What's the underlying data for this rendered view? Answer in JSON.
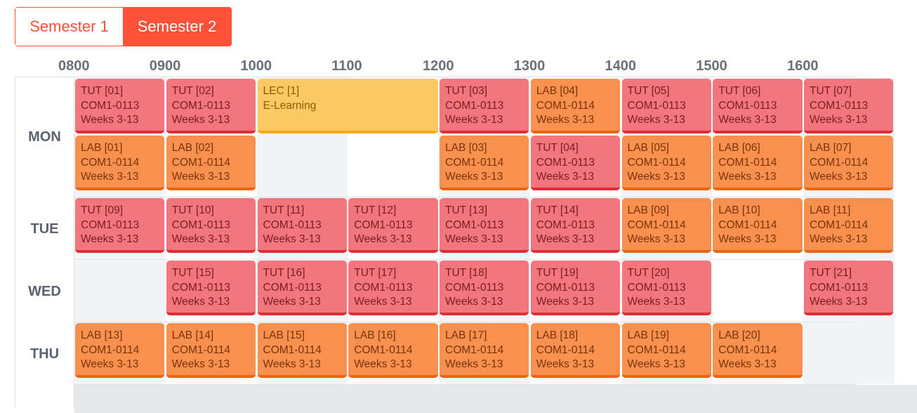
{
  "semesters": {
    "sem1": "Semester 1",
    "sem2": "Semester 2"
  },
  "hours": [
    "0800",
    "0900",
    "1000",
    "1100",
    "1200",
    "1300",
    "1400",
    "1500",
    "1600"
  ],
  "days": [
    "MON",
    "TUE",
    "WED",
    "THU"
  ],
  "colors": {
    "tutorial": "#f2777d",
    "lab": "#f8914f",
    "lecture": "#fdc965",
    "accent": "#ff5138"
  },
  "lessons": [
    {
      "day": "MON",
      "lane": 0,
      "start": "0800",
      "end": "0900",
      "title": "TUT [01]",
      "venue": "COM1-0113",
      "weeks": "Weeks 3-13",
      "kind": "red"
    },
    {
      "day": "MON",
      "lane": 0,
      "start": "0900",
      "end": "1000",
      "title": "TUT [02]",
      "venue": "COM1-0113",
      "weeks": "Weeks 3-13",
      "kind": "red"
    },
    {
      "day": "MON",
      "lane": 0,
      "start": "1000",
      "end": "1200",
      "title": "LEC [1]",
      "venue": "E-Learning",
      "weeks": "",
      "kind": "yellow"
    },
    {
      "day": "MON",
      "lane": 0,
      "start": "1200",
      "end": "1300",
      "title": "TUT [03]",
      "venue": "COM1-0113",
      "weeks": "Weeks 3-13",
      "kind": "red"
    },
    {
      "day": "MON",
      "lane": 0,
      "start": "1300",
      "end": "1400",
      "title": "LAB [04]",
      "venue": "COM1-0114",
      "weeks": "Weeks 3-13",
      "kind": "orange"
    },
    {
      "day": "MON",
      "lane": 0,
      "start": "1400",
      "end": "1500",
      "title": "TUT [05]",
      "venue": "COM1-0113",
      "weeks": "Weeks 3-13",
      "kind": "red"
    },
    {
      "day": "MON",
      "lane": 0,
      "start": "1500",
      "end": "1600",
      "title": "TUT [06]",
      "venue": "COM1-0113",
      "weeks": "Weeks 3-13",
      "kind": "red"
    },
    {
      "day": "MON",
      "lane": 0,
      "start": "1600",
      "end": "1700",
      "title": "TUT [07]",
      "venue": "COM1-0113",
      "weeks": "Weeks 3-13",
      "kind": "red"
    },
    {
      "day": "MON",
      "lane": 1,
      "start": "0800",
      "end": "0900",
      "title": "LAB [01]",
      "venue": "COM1-0114",
      "weeks": "Weeks 3-13",
      "kind": "orange"
    },
    {
      "day": "MON",
      "lane": 1,
      "start": "0900",
      "end": "1000",
      "title": "LAB [02]",
      "venue": "COM1-0114",
      "weeks": "Weeks 3-13",
      "kind": "orange"
    },
    {
      "day": "MON",
      "lane": 1,
      "start": "1200",
      "end": "1300",
      "title": "LAB [03]",
      "venue": "COM1-0114",
      "weeks": "Weeks 3-13",
      "kind": "orange"
    },
    {
      "day": "MON",
      "lane": 1,
      "start": "1300",
      "end": "1400",
      "title": "TUT [04]",
      "venue": "COM1-0113",
      "weeks": "Weeks 3-13",
      "kind": "red"
    },
    {
      "day": "MON",
      "lane": 1,
      "start": "1400",
      "end": "1500",
      "title": "LAB [05]",
      "venue": "COM1-0114",
      "weeks": "Weeks 3-13",
      "kind": "orange"
    },
    {
      "day": "MON",
      "lane": 1,
      "start": "1500",
      "end": "1600",
      "title": "LAB [06]",
      "venue": "COM1-0114",
      "weeks": "Weeks 3-13",
      "kind": "orange"
    },
    {
      "day": "MON",
      "lane": 1,
      "start": "1600",
      "end": "1700",
      "title": "LAB [07]",
      "venue": "COM1-0114",
      "weeks": "Weeks 3-13",
      "kind": "orange"
    },
    {
      "day": "TUE",
      "lane": 0,
      "start": "0800",
      "end": "0900",
      "title": "TUT [09]",
      "venue": "COM1-0113",
      "weeks": "Weeks 3-13",
      "kind": "red"
    },
    {
      "day": "TUE",
      "lane": 0,
      "start": "0900",
      "end": "1000",
      "title": "TUT [10]",
      "venue": "COM1-0113",
      "weeks": "Weeks 3-13",
      "kind": "red"
    },
    {
      "day": "TUE",
      "lane": 0,
      "start": "1000",
      "end": "1100",
      "title": "TUT [11]",
      "venue": "COM1-0113",
      "weeks": "Weeks 3-13",
      "kind": "red"
    },
    {
      "day": "TUE",
      "lane": 0,
      "start": "1100",
      "end": "1200",
      "title": "TUT [12]",
      "venue": "COM1-0113",
      "weeks": "Weeks 3-13",
      "kind": "red"
    },
    {
      "day": "TUE",
      "lane": 0,
      "start": "1200",
      "end": "1300",
      "title": "TUT [13]",
      "venue": "COM1-0113",
      "weeks": "Weeks 3-13",
      "kind": "red"
    },
    {
      "day": "TUE",
      "lane": 0,
      "start": "1300",
      "end": "1400",
      "title": "TUT [14]",
      "venue": "COM1-0113",
      "weeks": "Weeks 3-13",
      "kind": "red"
    },
    {
      "day": "TUE",
      "lane": 0,
      "start": "1400",
      "end": "1500",
      "title": "LAB [09]",
      "venue": "COM1-0114",
      "weeks": "Weeks 3-13",
      "kind": "orange"
    },
    {
      "day": "TUE",
      "lane": 0,
      "start": "1500",
      "end": "1600",
      "title": "LAB [10]",
      "venue": "COM1-0114",
      "weeks": "Weeks 3-13",
      "kind": "orange"
    },
    {
      "day": "TUE",
      "lane": 0,
      "start": "1600",
      "end": "1700",
      "title": "LAB [11]",
      "venue": "COM1-0114",
      "weeks": "Weeks 3-13",
      "kind": "orange"
    },
    {
      "day": "WED",
      "lane": 0,
      "start": "0900",
      "end": "1000",
      "title": "TUT [15]",
      "venue": "COM1-0113",
      "weeks": "Weeks 3-13",
      "kind": "red"
    },
    {
      "day": "WED",
      "lane": 0,
      "start": "1000",
      "end": "1100",
      "title": "TUT [16]",
      "venue": "COM1-0113",
      "weeks": "Weeks 3-13",
      "kind": "red"
    },
    {
      "day": "WED",
      "lane": 0,
      "start": "1100",
      "end": "1200",
      "title": "TUT [17]",
      "venue": "COM1-0113",
      "weeks": "Weeks 3-13",
      "kind": "red"
    },
    {
      "day": "WED",
      "lane": 0,
      "start": "1200",
      "end": "1300",
      "title": "TUT [18]",
      "venue": "COM1-0113",
      "weeks": "Weeks 3-13",
      "kind": "red"
    },
    {
      "day": "WED",
      "lane": 0,
      "start": "1300",
      "end": "1400",
      "title": "TUT [19]",
      "venue": "COM1-0113",
      "weeks": "Weeks 3-13",
      "kind": "red"
    },
    {
      "day": "WED",
      "lane": 0,
      "start": "1400",
      "end": "1500",
      "title": "TUT [20]",
      "venue": "COM1-0113",
      "weeks": "Weeks 3-13",
      "kind": "red"
    },
    {
      "day": "WED",
      "lane": 0,
      "start": "1600",
      "end": "1700",
      "title": "TUT [21]",
      "venue": "COM1-0113",
      "weeks": "Weeks 3-13",
      "kind": "red"
    },
    {
      "day": "THU",
      "lane": 0,
      "start": "0800",
      "end": "0900",
      "title": "LAB [13]",
      "venue": "COM1-0114",
      "weeks": "Weeks 3-13",
      "kind": "orange"
    },
    {
      "day": "THU",
      "lane": 0,
      "start": "0900",
      "end": "1000",
      "title": "LAB [14]",
      "venue": "COM1-0114",
      "weeks": "Weeks 3-13",
      "kind": "orange"
    },
    {
      "day": "THU",
      "lane": 0,
      "start": "1000",
      "end": "1100",
      "title": "LAB [15]",
      "venue": "COM1-0114",
      "weeks": "Weeks 3-13",
      "kind": "orange"
    },
    {
      "day": "THU",
      "lane": 0,
      "start": "1100",
      "end": "1200",
      "title": "LAB [16]",
      "venue": "COM1-0114",
      "weeks": "Weeks 3-13",
      "kind": "orange"
    },
    {
      "day": "THU",
      "lane": 0,
      "start": "1200",
      "end": "1300",
      "title": "LAB [17]",
      "venue": "COM1-0114",
      "weeks": "Weeks 3-13",
      "kind": "orange"
    },
    {
      "day": "THU",
      "lane": 0,
      "start": "1300",
      "end": "1400",
      "title": "LAB [18]",
      "venue": "COM1-0114",
      "weeks": "Weeks 3-13",
      "kind": "orange"
    },
    {
      "day": "THU",
      "lane": 0,
      "start": "1400",
      "end": "1500",
      "title": "LAB [19]",
      "venue": "COM1-0114",
      "weeks": "Weeks 3-13",
      "kind": "orange"
    },
    {
      "day": "THU",
      "lane": 0,
      "start": "1500",
      "end": "1600",
      "title": "LAB [20]",
      "venue": "COM1-0114",
      "weeks": "Weeks 3-13",
      "kind": "orange"
    }
  ]
}
